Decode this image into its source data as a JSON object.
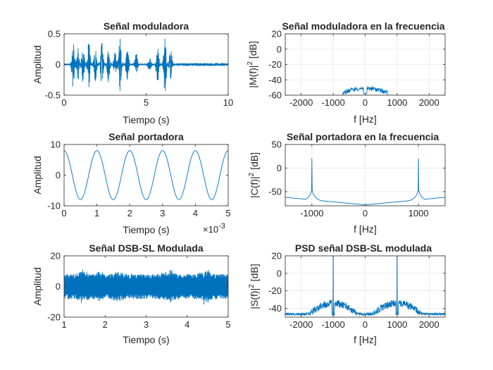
{
  "figure": {
    "line_color": "#0072BD",
    "grid_color": "#dfdfdf",
    "axis_color": "#262626"
  },
  "chart_data": [
    {
      "id": "mod_time",
      "type": "line",
      "title": "Señal moduladora",
      "xlabel": "Tiempo (s)",
      "ylabel": "Amplitud",
      "xlim": [
        0,
        10
      ],
      "ylim": [
        -0.5,
        0.5
      ],
      "xticks": [
        0,
        5,
        10
      ],
      "xtick_labels": [
        "0",
        "5",
        "10"
      ],
      "yticks": [
        -0.5,
        0,
        0.5
      ],
      "ytick_labels": [
        "-0.5",
        "0",
        "0.5"
      ],
      "grid": false,
      "signal": "speech waveform, bursts between ~0.5 s and ~6.5 s, peaks up to ~0.5",
      "bursts": [
        {
          "t": 0.55,
          "amp": 0.38
        },
        {
          "t": 0.85,
          "amp": 0.25
        },
        {
          "t": 1.15,
          "amp": 0.3
        },
        {
          "t": 1.5,
          "amp": 0.4
        },
        {
          "t": 1.9,
          "amp": 0.3
        },
        {
          "t": 2.3,
          "amp": 0.35
        },
        {
          "t": 2.7,
          "amp": 0.28
        },
        {
          "t": 3.1,
          "amp": 0.2
        },
        {
          "t": 3.4,
          "amp": 0.45
        },
        {
          "t": 3.85,
          "amp": 0.3
        },
        {
          "t": 4.4,
          "amp": 0.18
        },
        {
          "t": 5.2,
          "amp": 0.12
        },
        {
          "t": 5.7,
          "amp": 0.3
        },
        {
          "t": 6.15,
          "amp": 0.48
        },
        {
          "t": 6.5,
          "amp": 0.25
        }
      ]
    },
    {
      "id": "mod_freq",
      "type": "line",
      "title": "Señal moduladora en la frecuencia",
      "xlabel": "f [Hz]",
      "ylabel_parts": [
        "|M(f)|",
        "2",
        " [dB]"
      ],
      "xlim": [
        -2500,
        2500
      ],
      "ylim": [
        -60,
        20
      ],
      "xticks": [
        -2000,
        -1000,
        0,
        1000,
        2000
      ],
      "xtick_labels": [
        "-2000",
        "-1000",
        "0",
        "1000",
        "2000"
      ],
      "yticks": [
        -60,
        -40,
        -20,
        0,
        20
      ],
      "ytick_labels": [
        "-60",
        "-40",
        "-20",
        "0",
        "20"
      ],
      "grid": true,
      "signal": "spectrum hump from -700 Hz to 700 Hz reaching about -48 dB, floor at -60 dB"
    },
    {
      "id": "car_time",
      "type": "line",
      "title": "Señal portadora",
      "xlabel": "Tiempo (s)",
      "ylabel": "Amplitud",
      "x_exponent_base": "×10",
      "x_exponent_power": "-3",
      "xlim": [
        0,
        5
      ],
      "ylim": [
        -10,
        10
      ],
      "xticks": [
        0,
        1,
        2,
        3,
        4,
        5
      ],
      "xtick_labels": [
        "0",
        "1",
        "2",
        "3",
        "4",
        "5"
      ],
      "yticks": [
        -10,
        0,
        10
      ],
      "ytick_labels": [
        "-10",
        "0",
        "10"
      ],
      "grid": false,
      "amplitude": 8,
      "frequency_hz": 1000,
      "phase": 0
    },
    {
      "id": "car_freq",
      "type": "line",
      "title": "Señal portadora en la frecuencia",
      "xlabel": "f [Hz]",
      "ylabel_parts": [
        "|C(f)|",
        "2",
        " [dB]"
      ],
      "xlim": [
        -1500,
        1500
      ],
      "ylim": [
        -80,
        50
      ],
      "xticks": [
        -1000,
        0,
        1000
      ],
      "xtick_labels": [
        "-1000",
        "0",
        "1000"
      ],
      "yticks": [
        -50,
        0,
        50
      ],
      "ytick_labels": [
        "-50",
        "0",
        "50"
      ],
      "grid": true,
      "peaks": [
        {
          "f": -1000,
          "db": 20
        },
        {
          "f": 1000,
          "db": 20
        }
      ],
      "floor_db_at_zero": -78,
      "floor_db_at_edges": -62
    },
    {
      "id": "dsb_time",
      "type": "line",
      "title": "Señal DSB-SL Modulada",
      "xlabel": "Tiempo (s)",
      "ylabel": "Amplitud",
      "xlim": [
        1,
        5
      ],
      "ylim": [
        -20,
        20
      ],
      "xticks": [
        1,
        2,
        3,
        4,
        5
      ],
      "xtick_labels": [
        "1",
        "2",
        "3",
        "4",
        "5"
      ],
      "yticks": [
        -20,
        0,
        20
      ],
      "ytick_labels": [
        "-20",
        "0",
        "20"
      ],
      "grid": false,
      "signal": "dense modulated band of amplitude about 8 with peaks up to about 13"
    },
    {
      "id": "dsb_psd",
      "type": "line",
      "title": "PSD señal DSB-SL modulada",
      "xlabel": "f [Hz]",
      "ylabel_parts": [
        "|S(f)|",
        "2",
        " [dB]"
      ],
      "xlim": [
        -2500,
        2500
      ],
      "ylim": [
        -50,
        20
      ],
      "xticks": [
        -2000,
        -1000,
        0,
        1000,
        2000
      ],
      "xtick_labels": [
        "-2000",
        "-1000",
        "0",
        "1000",
        "2000"
      ],
      "yticks": [
        -40,
        -20,
        0,
        20
      ],
      "ytick_labels": [
        "-40",
        "-20",
        "0",
        "20"
      ],
      "grid": true,
      "carrier_spikes": [
        {
          "f": -1000,
          "db": 20
        },
        {
          "f": 1000,
          "db": 20
        }
      ],
      "sidebands": [
        {
          "center": -1000,
          "halfwidth": 800,
          "peak_db": -30
        },
        {
          "center": 1000,
          "halfwidth": 800,
          "peak_db": -30
        }
      ],
      "floor_db": -45
    }
  ]
}
